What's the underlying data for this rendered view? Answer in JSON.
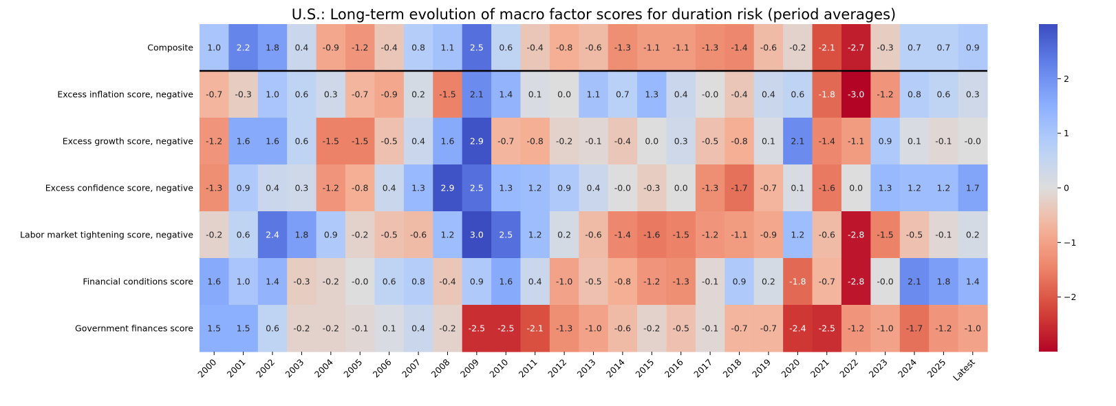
{
  "chart_data": {
    "type": "heatmap",
    "title": "U.S.: Long-term evolution of macro factor scores for duration risk (period averages)",
    "xlabel": "",
    "ylabel": "",
    "columns": [
      "2000",
      "2001",
      "2002",
      "2003",
      "2004",
      "2005",
      "2006",
      "2007",
      "2008",
      "2009",
      "2010",
      "2011",
      "2012",
      "2013",
      "2014",
      "2015",
      "2016",
      "2017",
      "2018",
      "2019",
      "2020",
      "2021",
      "2022",
      "2023",
      "2024",
      "2025",
      "Latest"
    ],
    "rows": [
      {
        "name": "Composite",
        "values": [
          "1.0",
          "2.2",
          "1.8",
          "0.4",
          "-0.9",
          "-1.2",
          "-0.4",
          "0.8",
          "1.1",
          "2.5",
          "0.6",
          "-0.4",
          "-0.8",
          "-0.6",
          "-1.3",
          "-1.1",
          "-1.1",
          "-1.3",
          "-1.4",
          "-0.6",
          "-0.2",
          "-2.1",
          "-2.7",
          "-0.3",
          "0.7",
          "0.7",
          "0.9"
        ]
      },
      {
        "name": "Excess inflation score, negative",
        "values": [
          "-0.7",
          "-0.3",
          "1.0",
          "0.6",
          "0.3",
          "-0.7",
          "-0.9",
          "0.2",
          "-1.5",
          "2.1",
          "1.4",
          "0.1",
          "0.0",
          "1.1",
          "0.7",
          "1.3",
          "0.4",
          "-0.0",
          "-0.4",
          "0.4",
          "0.6",
          "-1.8",
          "-3.0",
          "-1.2",
          "0.8",
          "0.6",
          "0.3"
        ]
      },
      {
        "name": "Excess growth score, negative",
        "values": [
          "-1.2",
          "1.6",
          "1.6",
          "0.6",
          "-1.5",
          "-1.5",
          "-0.5",
          "0.4",
          "1.6",
          "2.9",
          "-0.7",
          "-0.8",
          "-0.2",
          "-0.1",
          "-0.4",
          "0.0",
          "0.3",
          "-0.5",
          "-0.8",
          "0.1",
          "2.1",
          "-1.4",
          "-1.1",
          "0.9",
          "0.1",
          "-0.1",
          "-0.0"
        ]
      },
      {
        "name": "Excess confidence score, negative",
        "values": [
          "-1.3",
          "0.9",
          "0.4",
          "0.3",
          "-1.2",
          "-0.8",
          "0.4",
          "1.3",
          "2.9",
          "2.5",
          "1.3",
          "1.2",
          "0.9",
          "0.4",
          "-0.0",
          "-0.3",
          "0.0",
          "-1.3",
          "-1.7",
          "-0.7",
          "0.1",
          "-1.6",
          "0.0",
          "1.3",
          "1.2",
          "1.2",
          "1.7"
        ]
      },
      {
        "name": "Labor market tightening score, negative",
        "values": [
          "-0.2",
          "0.6",
          "2.4",
          "1.8",
          "0.9",
          "-0.2",
          "-0.5",
          "-0.6",
          "1.2",
          "3.0",
          "2.5",
          "1.2",
          "0.2",
          "-0.6",
          "-1.4",
          "-1.6",
          "-1.5",
          "-1.2",
          "-1.1",
          "-0.9",
          "1.2",
          "-0.6",
          "-2.8",
          "-1.5",
          "-0.5",
          "-0.1",
          "0.2"
        ]
      },
      {
        "name": "Financial conditions score",
        "values": [
          "1.6",
          "1.0",
          "1.4",
          "-0.3",
          "-0.2",
          "-0.0",
          "0.6",
          "0.8",
          "-0.4",
          "0.9",
          "1.6",
          "0.4",
          "-1.0",
          "-0.5",
          "-0.8",
          "-1.2",
          "-1.3",
          "-0.1",
          "0.9",
          "0.2",
          "-1.8",
          "-0.7",
          "-2.8",
          "-0.0",
          "2.1",
          "1.8",
          "1.4"
        ]
      },
      {
        "name": "Government finances score",
        "values": [
          "1.5",
          "1.5",
          "0.6",
          "-0.2",
          "-0.2",
          "-0.1",
          "0.1",
          "0.4",
          "-0.2",
          "-2.5",
          "-2.5",
          "-2.1",
          "-1.3",
          "-1.0",
          "-0.6",
          "-0.2",
          "-0.5",
          "-0.1",
          "-0.7",
          "-0.7",
          "-2.4",
          "-2.5",
          "-1.2",
          "-1.0",
          "-1.7",
          "-1.2",
          "-1.0"
        ]
      }
    ],
    "colormap": "coolwarm_r",
    "vmin": -3,
    "vmax": 3,
    "colorbar_ticks": [
      "2",
      "1",
      "0",
      "−1",
      "−2"
    ],
    "separator_after_row": "Composite"
  }
}
